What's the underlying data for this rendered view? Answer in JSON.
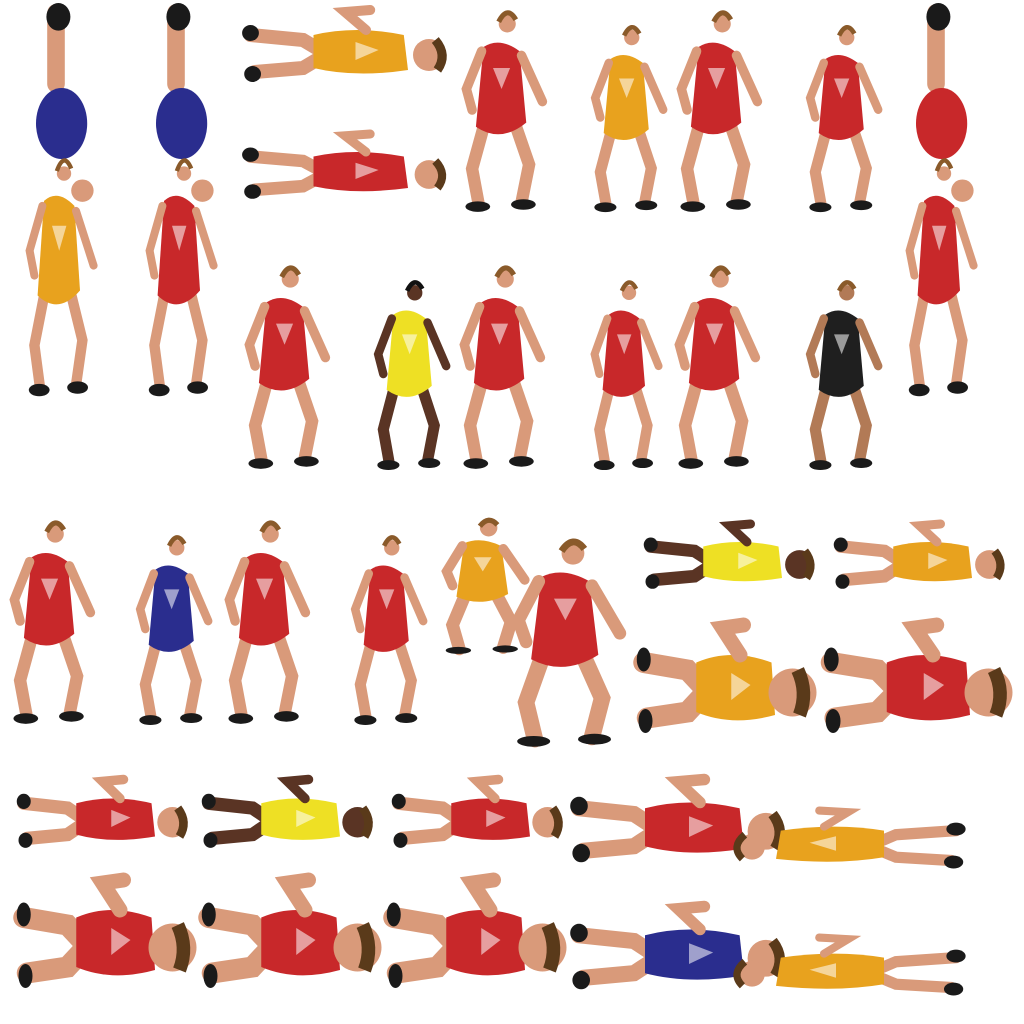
{
  "sheet": {
    "name": "wrestling-sprite-sheet",
    "background": "#ffffff",
    "skin_tones": {
      "light": "#d99a7a",
      "tan": "#b27a56",
      "dark": "#5a3424"
    },
    "singlet_colors": {
      "red": "#c8282a",
      "orange": "#e8a21e",
      "yellow": "#eee024",
      "blue": "#2a2d8e",
      "black": "#1f1f1f"
    },
    "sprites": [
      {
        "name": "sprite-lift-orange-blue",
        "pose": "lift",
        "colors": [
          "orange",
          "blue"
        ]
      },
      {
        "name": "sprite-lift-red-blue",
        "pose": "lift",
        "colors": [
          "red",
          "blue"
        ]
      },
      {
        "name": "sprite-roll-orange",
        "pose": "roll",
        "colors": [
          "orange"
        ]
      },
      {
        "name": "sprite-roll-red",
        "pose": "roll",
        "colors": [
          "red"
        ]
      },
      {
        "name": "sprite-stance-red-1",
        "pose": "stance",
        "colors": [
          "red"
        ]
      },
      {
        "name": "sprite-stance-orange-1",
        "pose": "stance",
        "colors": [
          "orange"
        ]
      },
      {
        "name": "sprite-stance-red-2",
        "pose": "stance",
        "colors": [
          "red"
        ]
      },
      {
        "name": "sprite-stance-red-3",
        "pose": "stance",
        "colors": [
          "red"
        ]
      },
      {
        "name": "sprite-lift-red-red",
        "pose": "lift",
        "colors": [
          "red",
          "red"
        ]
      },
      {
        "name": "sprite-stance-red-4",
        "pose": "stance",
        "colors": [
          "red"
        ]
      },
      {
        "name": "sprite-stance-yellow-1",
        "pose": "stance",
        "colors": [
          "yellow"
        ]
      },
      {
        "name": "sprite-stance-red-5",
        "pose": "stance",
        "colors": [
          "red"
        ]
      },
      {
        "name": "sprite-stance-red-6",
        "pose": "stance",
        "colors": [
          "red"
        ]
      },
      {
        "name": "sprite-stance-red-7",
        "pose": "stance",
        "colors": [
          "red"
        ]
      },
      {
        "name": "sprite-stance-black-1",
        "pose": "stance",
        "colors": [
          "black"
        ]
      },
      {
        "name": "sprite-stance-red-8",
        "pose": "stance",
        "colors": [
          "red"
        ]
      },
      {
        "name": "sprite-stance-blue-1",
        "pose": "stance",
        "colors": [
          "blue"
        ]
      },
      {
        "name": "sprite-stance-red-9",
        "pose": "stance",
        "colors": [
          "red"
        ]
      },
      {
        "name": "sprite-stance-red-10",
        "pose": "stance",
        "colors": [
          "red"
        ]
      },
      {
        "name": "sprite-grapple-orange-red",
        "pose": "grapple",
        "colors": [
          "orange",
          "red"
        ]
      },
      {
        "name": "sprite-ground-yellow",
        "pose": "ground",
        "colors": [
          "yellow"
        ]
      },
      {
        "name": "sprite-ground-orange",
        "pose": "ground",
        "colors": [
          "orange"
        ]
      },
      {
        "name": "sprite-ground-orange-2",
        "pose": "ground",
        "colors": [
          "orange"
        ]
      },
      {
        "name": "sprite-ground-red",
        "pose": "ground",
        "colors": [
          "red"
        ]
      },
      {
        "name": "sprite-ground-red-2",
        "pose": "ground",
        "colors": [
          "red"
        ]
      },
      {
        "name": "sprite-ground-yellow-2",
        "pose": "ground",
        "colors": [
          "yellow"
        ]
      },
      {
        "name": "sprite-ground-red-3",
        "pose": "ground",
        "colors": [
          "red"
        ]
      },
      {
        "name": "sprite-ground-red-4",
        "pose": "ground",
        "colors": [
          "red"
        ]
      },
      {
        "name": "sprite-ground-red-5",
        "pose": "ground",
        "colors": [
          "red"
        ]
      },
      {
        "name": "sprite-ground-red-6",
        "pose": "ground",
        "colors": [
          "red"
        ]
      },
      {
        "name": "sprite-prone-red-orange",
        "pose": "prone",
        "colors": [
          "red",
          "orange"
        ]
      },
      {
        "name": "sprite-prone-blue-orange",
        "pose": "prone",
        "colors": [
          "blue",
          "orange"
        ]
      }
    ]
  }
}
